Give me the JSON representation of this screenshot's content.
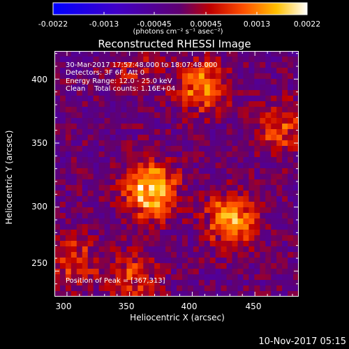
{
  "chart_data": {
    "type": "heatmap",
    "title": "Reconstructed RHESSI Image",
    "xlabel": "Heliocentric X (arcsec)",
    "ylabel": "Heliocentric Y (arcsec)",
    "xlim": [
      290,
      485
    ],
    "ylim": [
      230,
      422
    ],
    "x_ticks": [
      "300",
      "350",
      "400",
      "450"
    ],
    "y_ticks": [
      "250",
      "300",
      "350",
      "400"
    ],
    "colorbar": {
      "ticks": [
        "-0.0022",
        "-0.0013",
        "-0.00045",
        "0.00045",
        "0.0013",
        "0.0022"
      ],
      "unit": "(photons cm⁻² s⁻¹ asec⁻²)",
      "range": [
        -0.0022,
        0.0022
      ]
    },
    "annotations": [
      "30-Mar-2017 17:57:48.000 to 18:07:48.000",
      "Detectors: 3F 6F, Att 0",
      "Energy Range: 12.0 - 25.0 keV",
      "Clean    Total counts: 1.16E+04"
    ],
    "peak_label": "Position of Peak = [367,313]",
    "sources": [
      {
        "x": 367,
        "y": 313,
        "intensity": 0.0022
      },
      {
        "x": 432,
        "y": 290,
        "intensity": 0.0017
      },
      {
        "x": 408,
        "y": 395,
        "intensity": 0.0015
      },
      {
        "x": 305,
        "y": 258,
        "intensity": 0.0009
      },
      {
        "x": 352,
        "y": 245,
        "intensity": 0.0009
      },
      {
        "x": 470,
        "y": 360,
        "intensity": 0.001
      },
      {
        "x": 355,
        "y": 408,
        "intensity": 0.0006
      }
    ]
  },
  "timestamp": "10-Nov-2017 05:15"
}
